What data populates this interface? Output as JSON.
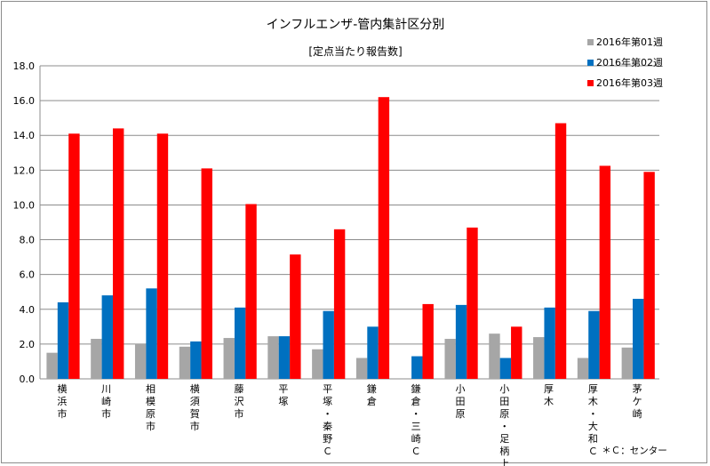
{
  "chart_data": {
    "type": "bar",
    "title": "インフルエンザ-管内集計区分別",
    "subtitle": "[定点当たり報告数]",
    "ylim": [
      0,
      18
    ],
    "yticks": [
      "0.0",
      "2.0",
      "4.0",
      "6.0",
      "8.0",
      "10.0",
      "12.0",
      "14.0",
      "16.0",
      "18.0"
    ],
    "grid": true,
    "legend_position": "top-right",
    "categories": [
      "横浜市",
      "川崎市",
      "相模原市",
      "横須賀市",
      "藤沢市",
      "平塚",
      "平塚・秦野Ｃ",
      "鎌倉",
      "鎌倉・三崎Ｃ",
      "小田原",
      "小田原・足柄上Ｃ",
      "厚木",
      "厚木・大和Ｃ",
      "茅ケ崎"
    ],
    "series": [
      {
        "name": "2016年第01週",
        "color": "#a6a6a6",
        "values": [
          1.5,
          2.3,
          2.0,
          1.85,
          2.35,
          2.45,
          1.7,
          1.2,
          0,
          2.3,
          2.6,
          2.4,
          1.2,
          1.8
        ]
      },
      {
        "name": "2016年第02週",
        "color": "#0070c0",
        "values": [
          4.4,
          4.8,
          5.2,
          2.15,
          4.1,
          2.45,
          3.9,
          3.0,
          1.3,
          4.25,
          1.2,
          4.1,
          3.9,
          4.6
        ]
      },
      {
        "name": "2016年第03週",
        "color": "#ff0000",
        "values": [
          14.1,
          14.4,
          14.1,
          12.1,
          10.05,
          7.15,
          8.6,
          16.2,
          4.3,
          8.7,
          3.0,
          14.7,
          12.25,
          11.9
        ]
      }
    ],
    "footnote": "＊Ｃ：センター"
  }
}
